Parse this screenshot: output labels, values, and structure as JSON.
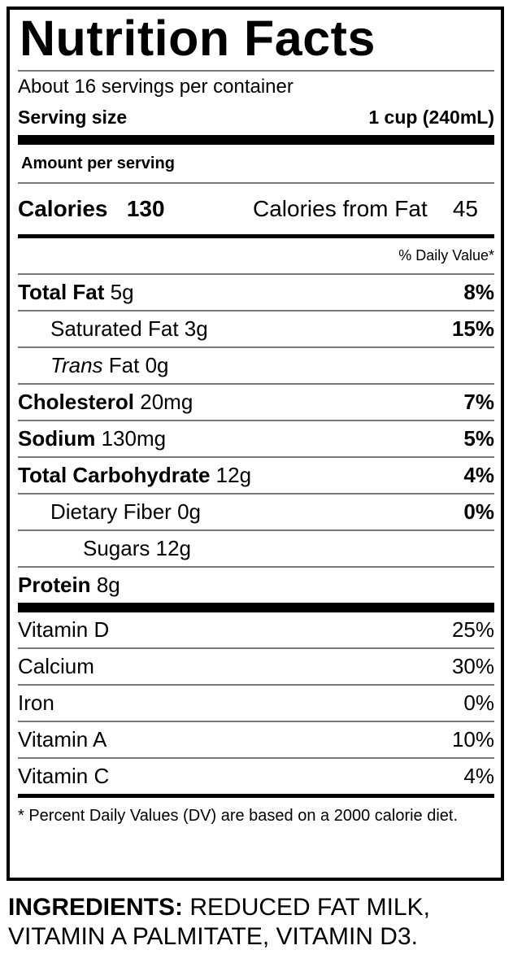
{
  "title": "Nutrition Facts",
  "servings_per_container": "About 16 servings per container",
  "serving_size_label": "Serving size",
  "serving_size_value": "1 cup (240mL)",
  "amount_per_serving": "Amount per serving",
  "calories_label": "Calories",
  "calories_value": "130",
  "calories_from_fat_label": "Calories from Fat",
  "calories_from_fat_value": "45",
  "daily_value_header": "% Daily Value*",
  "nutrients": [
    {
      "name": "Total Fat",
      "amount": "5g",
      "dv": "8%"
    },
    {
      "name": "Saturated Fat",
      "amount": "3g",
      "dv": "15%"
    },
    {
      "name": "Trans",
      "name_suffix": "Fat",
      "amount": "0g",
      "dv": ""
    },
    {
      "name": "Cholesterol",
      "amount": "20mg",
      "dv": "7%"
    },
    {
      "name": "Sodium",
      "amount": "130mg",
      "dv": "5%"
    },
    {
      "name": "Total Carbohydrate",
      "amount": "12g",
      "dv": "4%"
    },
    {
      "name": "Dietary Fiber",
      "amount": "0g",
      "dv": "0%"
    },
    {
      "name": "Sugars",
      "amount": "12g",
      "dv": ""
    },
    {
      "name": "Protein",
      "amount": "8g",
      "dv": ""
    }
  ],
  "vitamins": [
    {
      "name": "Vitamin D",
      "dv": "25%"
    },
    {
      "name": "Calcium",
      "dv": "30%"
    },
    {
      "name": "Iron",
      "dv": "0%"
    },
    {
      "name": "Vitamin A",
      "dv": "10%"
    },
    {
      "name": "Vitamin C",
      "dv": "4%"
    }
  ],
  "footnote": "* Percent Daily Values (DV) are based on a 2000 calorie diet.",
  "ingredients_label": "INGREDIENTS:",
  "ingredients_text": "REDUCED FAT MILK, VITAMIN A PALMITATE, VITAMIN D3."
}
